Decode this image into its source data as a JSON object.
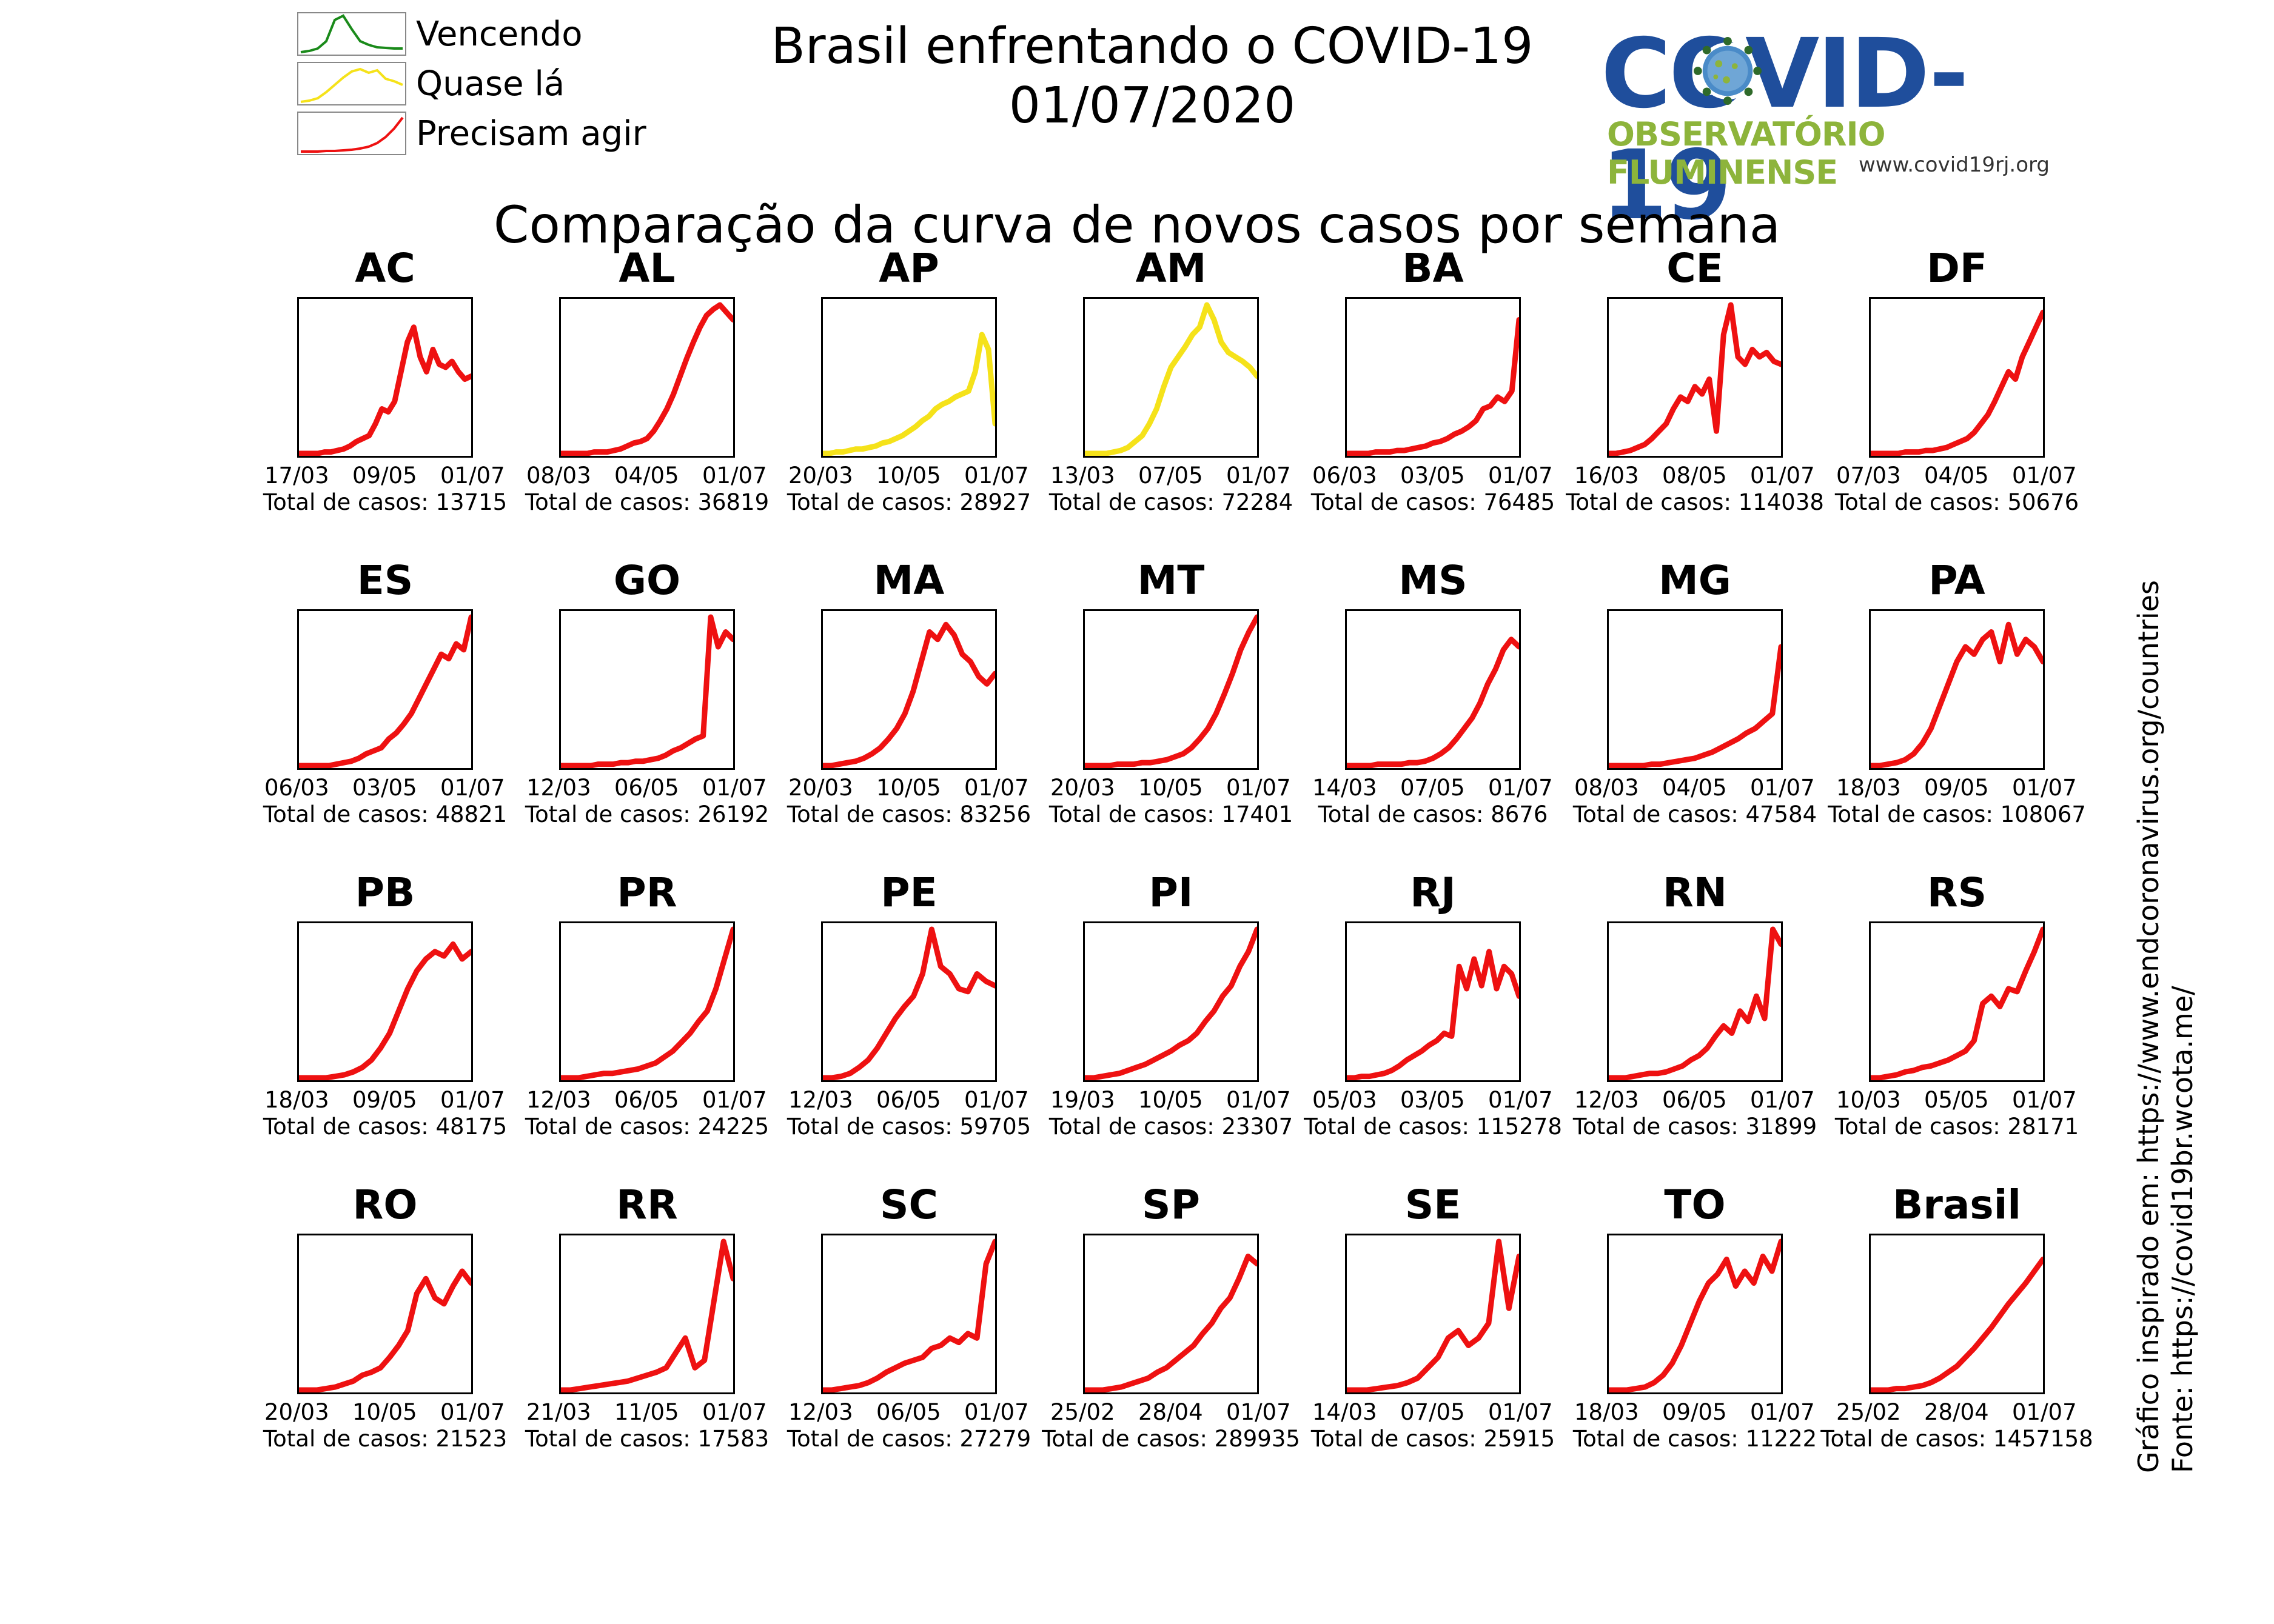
{
  "header": {
    "title_line1": "Brasil enfrentando o COVID-19",
    "title_line2": "01/07/2020",
    "subtitle": "Comparação da curva de novos casos por semana"
  },
  "legend": [
    {
      "label": "Vencendo",
      "color": "#1a8a1a",
      "shape": "peak"
    },
    {
      "label": "Quase lá",
      "color": "#f5e21a",
      "shape": "plateau"
    },
    {
      "label": "Precisam agir",
      "color": "#ee1111",
      "shape": "rising"
    }
  ],
  "logo": {
    "word": "COVID-19",
    "subtitle": "OBSERVATÓRIO FLUMINENSE",
    "url": "www.covid19rj.org",
    "icon": "virus-icon"
  },
  "credits": {
    "line1": "Gráfico inspirado em: https://www.endcoronavirus.org/countries",
    "line2": "Fonte: https://covid19br.wcota.me/"
  },
  "colors": {
    "red": "#ee1111",
    "yellow": "#f5e21a",
    "green": "#1a8a1a"
  },
  "total_prefix": "Total de casos: ",
  "chart_data": [
    {
      "type": "line",
      "title": "AC",
      "status": "red",
      "x_ticks": [
        "17/03",
        "09/05",
        "01/07"
      ],
      "total": "13715",
      "values": [
        0,
        0,
        0,
        0,
        1,
        1,
        2,
        3,
        5,
        8,
        10,
        12,
        20,
        30,
        28,
        35,
        55,
        75,
        85,
        65,
        55,
        70,
        60,
        58,
        62,
        55,
        50,
        52
      ]
    },
    {
      "type": "line",
      "title": "AL",
      "status": "red",
      "x_ticks": [
        "08/03",
        "04/05",
        "01/07"
      ],
      "total": "36819",
      "values": [
        0,
        0,
        0,
        0,
        0,
        1,
        1,
        1,
        2,
        3,
        5,
        7,
        8,
        10,
        15,
        22,
        30,
        40,
        52,
        64,
        75,
        85,
        93,
        97,
        100,
        95,
        90
      ]
    },
    {
      "type": "line",
      "title": "AP",
      "status": "yellow",
      "x_ticks": [
        "20/03",
        "10/05",
        "01/07"
      ],
      "total": "28927",
      "values": [
        0,
        0,
        1,
        1,
        2,
        3,
        3,
        4,
        5,
        7,
        8,
        10,
        12,
        15,
        18,
        22,
        25,
        30,
        33,
        35,
        38,
        40,
        42,
        55,
        80,
        70,
        20
      ]
    },
    {
      "type": "line",
      "title": "AM",
      "status": "yellow",
      "x_ticks": [
        "13/03",
        "07/05",
        "01/07"
      ],
      "total": "72284",
      "values": [
        0,
        0,
        0,
        0,
        1,
        2,
        4,
        8,
        12,
        20,
        30,
        45,
        58,
        65,
        72,
        80,
        85,
        100,
        90,
        75,
        68,
        65,
        62,
        58,
        52
      ]
    },
    {
      "type": "line",
      "title": "BA",
      "status": "red",
      "x_ticks": [
        "06/03",
        "03/05",
        "01/07"
      ],
      "total": "76485",
      "values": [
        0,
        0,
        0,
        0,
        1,
        1,
        1,
        2,
        2,
        3,
        4,
        5,
        7,
        8,
        10,
        13,
        15,
        18,
        22,
        30,
        32,
        38,
        35,
        42,
        90
      ]
    },
    {
      "type": "line",
      "title": "CE",
      "status": "red",
      "x_ticks": [
        "16/03",
        "08/05",
        "01/07"
      ],
      "total": "114038",
      "values": [
        0,
        0,
        1,
        2,
        4,
        6,
        10,
        15,
        20,
        30,
        38,
        35,
        45,
        40,
        50,
        15,
        80,
        100,
        65,
        60,
        70,
        65,
        68,
        62,
        60
      ]
    },
    {
      "type": "line",
      "title": "DF",
      "status": "red",
      "x_ticks": [
        "07/03",
        "04/05",
        "01/07"
      ],
      "total": "50676",
      "values": [
        0,
        0,
        0,
        0,
        0,
        1,
        1,
        1,
        2,
        2,
        3,
        4,
        6,
        8,
        10,
        14,
        20,
        26,
        35,
        45,
        55,
        50,
        65,
        75,
        85,
        95
      ]
    },
    {
      "type": "line",
      "title": "ES",
      "status": "red",
      "x_ticks": [
        "06/03",
        "03/05",
        "01/07"
      ],
      "total": "48821",
      "values": [
        0,
        0,
        0,
        0,
        0,
        1,
        2,
        3,
        5,
        8,
        10,
        12,
        18,
        22,
        28,
        35,
        45,
        55,
        65,
        75,
        72,
        82,
        78,
        100
      ]
    },
    {
      "type": "line",
      "title": "GO",
      "status": "red",
      "x_ticks": [
        "12/03",
        "06/05",
        "01/07"
      ],
      "total": "26192",
      "values": [
        0,
        0,
        0,
        0,
        0,
        1,
        1,
        1,
        2,
        2,
        3,
        3,
        4,
        5,
        7,
        10,
        12,
        15,
        18,
        20,
        100,
        80,
        90,
        85
      ]
    },
    {
      "type": "line",
      "title": "MA",
      "status": "red",
      "x_ticks": [
        "20/03",
        "10/05",
        "01/07"
      ],
      "total": "83256",
      "values": [
        0,
        0,
        1,
        2,
        3,
        5,
        8,
        12,
        18,
        25,
        35,
        50,
        70,
        90,
        85,
        95,
        88,
        75,
        70,
        60,
        55,
        62
      ]
    },
    {
      "type": "line",
      "title": "MT",
      "status": "red",
      "x_ticks": [
        "20/03",
        "10/05",
        "01/07"
      ],
      "total": "17401",
      "values": [
        0,
        0,
        0,
        0,
        1,
        1,
        1,
        2,
        2,
        3,
        4,
        6,
        8,
        12,
        18,
        25,
        35,
        48,
        62,
        78,
        90,
        100
      ]
    },
    {
      "type": "line",
      "title": "MS",
      "status": "red",
      "x_ticks": [
        "14/03",
        "07/05",
        "01/07"
      ],
      "total": "8676",
      "values": [
        0,
        0,
        0,
        0,
        1,
        1,
        1,
        1,
        2,
        2,
        3,
        5,
        8,
        12,
        18,
        25,
        32,
        42,
        55,
        65,
        78,
        85,
        80
      ]
    },
    {
      "type": "line",
      "title": "MG",
      "status": "red",
      "x_ticks": [
        "08/03",
        "04/05",
        "01/07"
      ],
      "total": "47584",
      "values": [
        0,
        0,
        0,
        0,
        0,
        1,
        1,
        2,
        3,
        4,
        5,
        7,
        9,
        12,
        15,
        18,
        22,
        25,
        30,
        35,
        80
      ]
    },
    {
      "type": "line",
      "title": "PA",
      "status": "red",
      "x_ticks": [
        "18/03",
        "09/05",
        "01/07"
      ],
      "total": "108067",
      "values": [
        0,
        0,
        1,
        2,
        4,
        8,
        15,
        25,
        40,
        55,
        70,
        80,
        75,
        85,
        90,
        70,
        95,
        75,
        85,
        80,
        70
      ]
    },
    {
      "type": "line",
      "title": "PB",
      "status": "red",
      "x_ticks": [
        "18/03",
        "09/05",
        "01/07"
      ],
      "total": "48175",
      "values": [
        0,
        0,
        0,
        0,
        1,
        2,
        4,
        7,
        12,
        20,
        30,
        45,
        60,
        72,
        80,
        85,
        82,
        90,
        80,
        85
      ]
    },
    {
      "type": "line",
      "title": "PR",
      "status": "red",
      "x_ticks": [
        "12/03",
        "06/05",
        "01/07"
      ],
      "total": "24225",
      "values": [
        0,
        0,
        0,
        1,
        2,
        3,
        3,
        4,
        5,
        6,
        8,
        10,
        14,
        18,
        24,
        30,
        38,
        45,
        60,
        80,
        100
      ]
    },
    {
      "type": "line",
      "title": "PE",
      "status": "red",
      "x_ticks": [
        "12/03",
        "06/05",
        "01/07"
      ],
      "total": "59705",
      "values": [
        0,
        0,
        1,
        3,
        7,
        12,
        20,
        30,
        40,
        48,
        55,
        70,
        100,
        75,
        70,
        60,
        58,
        70,
        65,
        62
      ]
    },
    {
      "type": "line",
      "title": "PI",
      "status": "red",
      "x_ticks": [
        "19/03",
        "10/05",
        "01/07"
      ],
      "total": "23307",
      "values": [
        0,
        0,
        1,
        2,
        3,
        5,
        7,
        9,
        12,
        15,
        18,
        22,
        25,
        30,
        38,
        45,
        55,
        62,
        75,
        85,
        100
      ]
    },
    {
      "type": "line",
      "title": "RJ",
      "status": "red",
      "x_ticks": [
        "05/03",
        "03/05",
        "01/07"
      ],
      "total": "115278",
      "values": [
        0,
        0,
        1,
        1,
        2,
        3,
        5,
        8,
        12,
        15,
        18,
        22,
        25,
        30,
        28,
        75,
        60,
        80,
        62,
        85,
        60,
        75,
        70,
        55
      ]
    },
    {
      "type": "line",
      "title": "RN",
      "status": "red",
      "x_ticks": [
        "12/03",
        "06/05",
        "01/07"
      ],
      "total": "31899",
      "values": [
        0,
        0,
        0,
        1,
        2,
        3,
        3,
        4,
        6,
        8,
        12,
        15,
        20,
        28,
        35,
        30,
        45,
        38,
        55,
        40,
        100,
        90
      ]
    },
    {
      "type": "line",
      "title": "RS",
      "status": "red",
      "x_ticks": [
        "10/03",
        "05/05",
        "01/07"
      ],
      "total": "28171",
      "values": [
        0,
        0,
        1,
        2,
        4,
        5,
        7,
        8,
        10,
        12,
        15,
        18,
        25,
        50,
        55,
        48,
        60,
        58,
        72,
        85,
        100
      ]
    },
    {
      "type": "line",
      "title": "RO",
      "status": "red",
      "x_ticks": [
        "20/03",
        "10/05",
        "01/07"
      ],
      "total": "21523",
      "values": [
        0,
        0,
        0,
        1,
        2,
        4,
        6,
        10,
        12,
        15,
        22,
        30,
        40,
        65,
        75,
        62,
        58,
        70,
        80,
        72
      ]
    },
    {
      "type": "line",
      "title": "RR",
      "status": "red",
      "x_ticks": [
        "21/03",
        "11/05",
        "01/07"
      ],
      "total": "17583",
      "values": [
        0,
        0,
        1,
        2,
        3,
        4,
        5,
        6,
        8,
        10,
        12,
        15,
        25,
        35,
        15,
        20,
        60,
        100,
        75
      ]
    },
    {
      "type": "line",
      "title": "SC",
      "status": "red",
      "x_ticks": [
        "12/03",
        "06/05",
        "01/07"
      ],
      "total": "27279",
      "values": [
        0,
        0,
        1,
        2,
        3,
        5,
        8,
        12,
        15,
        18,
        20,
        22,
        28,
        30,
        35,
        32,
        38,
        35,
        85,
        100
      ]
    },
    {
      "type": "line",
      "title": "SP",
      "status": "red",
      "x_ticks": [
        "25/02",
        "28/04",
        "01/07"
      ],
      "total": "289935",
      "values": [
        0,
        0,
        0,
        1,
        2,
        4,
        6,
        8,
        12,
        15,
        20,
        25,
        30,
        38,
        45,
        55,
        62,
        75,
        90,
        85
      ]
    },
    {
      "type": "line",
      "title": "SE",
      "status": "red",
      "x_ticks": [
        "14/03",
        "07/05",
        "01/07"
      ],
      "total": "25915",
      "values": [
        0,
        0,
        0,
        1,
        2,
        3,
        5,
        8,
        15,
        22,
        35,
        40,
        30,
        35,
        45,
        100,
        55,
        90
      ]
    },
    {
      "type": "line",
      "title": "TO",
      "status": "red",
      "x_ticks": [
        "18/03",
        "09/05",
        "01/07"
      ],
      "total": "11222",
      "values": [
        0,
        0,
        0,
        1,
        2,
        5,
        10,
        18,
        30,
        45,
        60,
        72,
        78,
        88,
        70,
        80,
        72,
        90,
        80,
        100
      ]
    },
    {
      "type": "line",
      "title": "Brasil",
      "status": "red",
      "x_ticks": [
        "25/02",
        "28/04",
        "01/07"
      ],
      "total": "1457158",
      "values": [
        0,
        0,
        0,
        1,
        1,
        2,
        3,
        5,
        8,
        12,
        16,
        22,
        28,
        35,
        42,
        50,
        58,
        65,
        72,
        80,
        88
      ]
    }
  ]
}
